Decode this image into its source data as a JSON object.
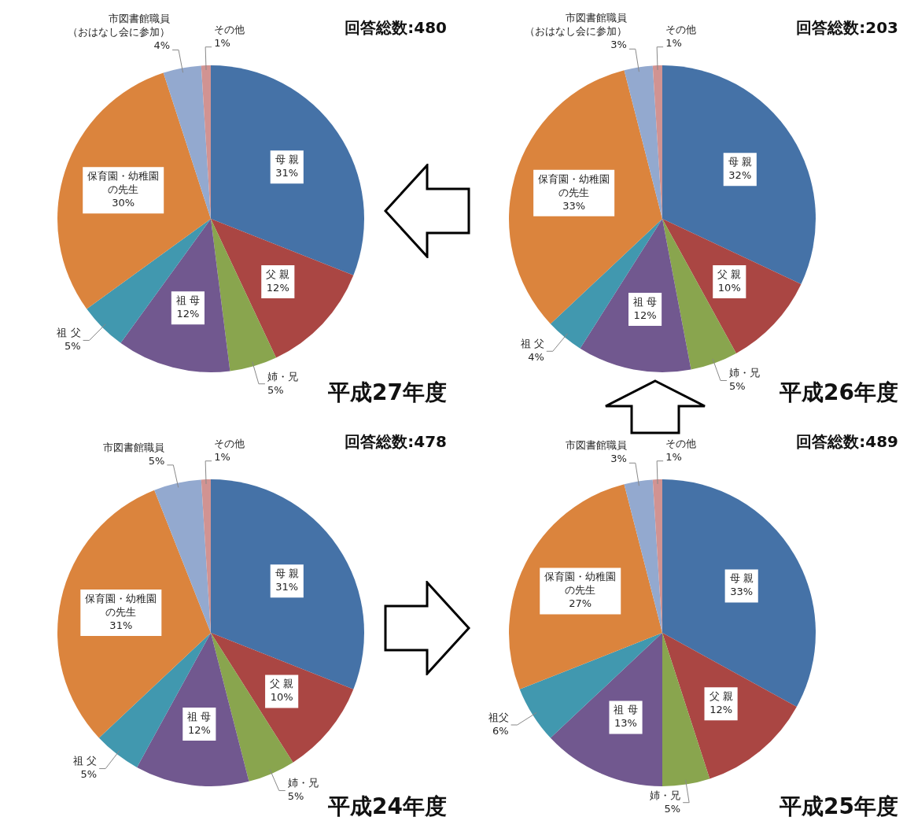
{
  "chart_data": [
    {
      "type": "pie",
      "title": "平成27年度",
      "subtitle": "回答総数:480",
      "categories": [
        "母 親",
        "父 親",
        "姉・兄",
        "祖 母",
        "祖 父",
        "保育園・幼稚園の先生",
        "市図書館職員（おはなし会に参加）",
        "その他"
      ],
      "values": [
        31,
        12,
        5,
        12,
        5,
        30,
        4,
        1
      ],
      "value_labels": [
        "31%",
        "12%",
        "5%",
        "12%",
        "5%",
        "30%",
        "4%",
        "1%"
      ],
      "colors": [
        "#4572a7",
        "#aa4643",
        "#89a54e",
        "#71588f",
        "#4198af",
        "#db843d",
        "#93a9cf",
        "#d19392"
      ],
      "legend": false
    },
    {
      "type": "pie",
      "title": "平成26年度",
      "subtitle": "回答総数:203",
      "categories": [
        "母 親",
        "父 親",
        "姉・兄",
        "祖 母",
        "祖 父",
        "保育園・幼稚園の先生",
        "市図書館職員（おはなし会に参加）",
        "その他"
      ],
      "values": [
        32,
        10,
        5,
        12,
        4,
        33,
        3,
        1
      ],
      "value_labels": [
        "32%",
        "10%",
        "5%",
        "12%",
        "4%",
        "33%",
        "3%",
        "1%"
      ],
      "colors": [
        "#4572a7",
        "#aa4643",
        "#89a54e",
        "#71588f",
        "#4198af",
        "#db843d",
        "#93a9cf",
        "#d19392"
      ],
      "legend": false
    },
    {
      "type": "pie",
      "title": "平成24年度",
      "subtitle": "回答総数:478",
      "categories": [
        "母 親",
        "父 親",
        "姉・兄",
        "祖 母",
        "祖 父",
        "保育園・幼稚園の先生",
        "市図書館職員",
        "その他"
      ],
      "values": [
        31,
        10,
        5,
        12,
        5,
        31,
        5,
        1
      ],
      "value_labels": [
        "31%",
        "10%",
        "5%",
        "12%",
        "5%",
        "31%",
        "5%",
        "1%"
      ],
      "colors": [
        "#4572a7",
        "#aa4643",
        "#89a54e",
        "#71588f",
        "#4198af",
        "#db843d",
        "#93a9cf",
        "#d19392"
      ],
      "legend": false
    },
    {
      "type": "pie",
      "title": "平成25年度",
      "subtitle": "回答総数:489",
      "categories": [
        "母 親",
        "父 親",
        "姉・兄",
        "祖 母",
        "祖父",
        "保育園・幼稚園の先生",
        "市図書館職員",
        "その他"
      ],
      "values": [
        33,
        12,
        5,
        13,
        6,
        27,
        3,
        1
      ],
      "value_labels": [
        "33%",
        "12%",
        "5%",
        "13%",
        "6%",
        "27%",
        "3%",
        "1%"
      ],
      "colors": [
        "#4572a7",
        "#aa4643",
        "#89a54e",
        "#71588f",
        "#4198af",
        "#db843d",
        "#93a9cf",
        "#d19392"
      ],
      "legend": false
    }
  ]
}
